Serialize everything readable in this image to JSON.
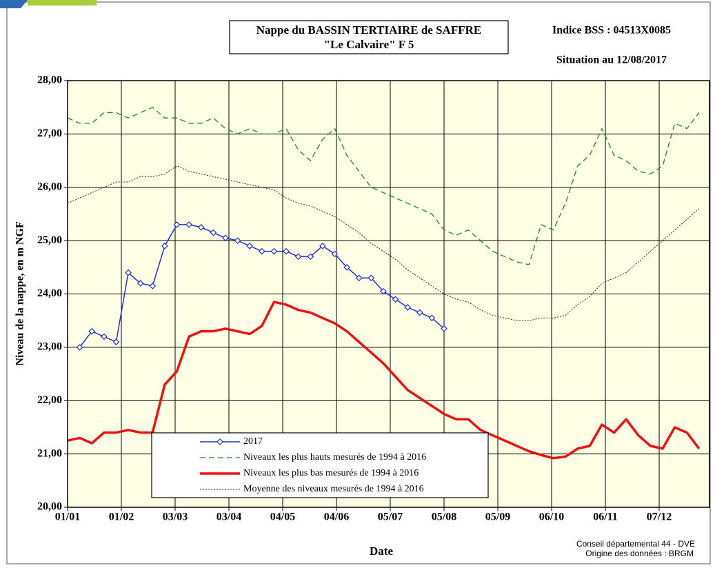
{
  "chart_data": {
    "type": "line",
    "title": "Nappe du BASSIN TERTIAIRE de SAFFRE",
    "subtitle": "\"Le Calvaire\" F 5",
    "annotations": [
      "Indice BSS : 04513X0085",
      "Situation au 12/08/2017"
    ],
    "footer": [
      "Conseil départemental 44 - DVE",
      "Origine des données : BRGM"
    ],
    "xlabel": "Date",
    "ylabel": "Niveau de la nappe, en m NGF",
    "xlim": [
      0,
      370
    ],
    "ylim": [
      20,
      28
    ],
    "xticks": [
      {
        "value": 0,
        "label": "01/01"
      },
      {
        "value": 31,
        "label": "01/02"
      },
      {
        "value": 62,
        "label": "03/03"
      },
      {
        "value": 93,
        "label": "03/04"
      },
      {
        "value": 124,
        "label": "04/05"
      },
      {
        "value": 155,
        "label": "04/06"
      },
      {
        "value": 186,
        "label": "05/07"
      },
      {
        "value": 217,
        "label": "05/08"
      },
      {
        "value": 248,
        "label": "05/09"
      },
      {
        "value": 279,
        "label": "06/10"
      },
      {
        "value": 310,
        "label": "06/11"
      },
      {
        "value": 341,
        "label": "07/12"
      }
    ],
    "yticks": [
      {
        "value": 20,
        "label": "20,00"
      },
      {
        "value": 21,
        "label": "21,00"
      },
      {
        "value": 22,
        "label": "22,00"
      },
      {
        "value": 23,
        "label": "23,00"
      },
      {
        "value": 24,
        "label": "24,00"
      },
      {
        "value": 25,
        "label": "25,00"
      },
      {
        "value": 26,
        "label": "26,00"
      },
      {
        "value": 27,
        "label": "27,00"
      },
      {
        "value": 28,
        "label": "28,00"
      }
    ],
    "grid": true,
    "legend_position": "lower-left",
    "x": [
      0,
      7,
      14,
      21,
      28,
      35,
      42,
      49,
      56,
      63,
      70,
      77,
      84,
      91,
      98,
      105,
      112,
      119,
      126,
      133,
      140,
      147,
      154,
      161,
      168,
      175,
      182,
      189,
      196,
      203,
      210,
      217,
      224,
      231,
      238,
      245,
      252,
      259,
      266,
      273,
      280,
      287,
      294,
      301,
      308,
      315,
      322,
      329,
      336,
      343,
      350,
      357,
      364
    ],
    "series": [
      {
        "name": "2017",
        "color": "#1f2fd0",
        "line_style": "solid",
        "marker": "diamond",
        "values": [
          null,
          23.0,
          23.3,
          23.2,
          23.1,
          24.4,
          24.2,
          24.15,
          24.9,
          25.3,
          25.3,
          25.25,
          25.15,
          25.05,
          25.0,
          24.9,
          24.8,
          24.8,
          24.8,
          24.7,
          24.7,
          24.9,
          24.75,
          24.5,
          24.3,
          24.3,
          24.05,
          23.9,
          23.75,
          23.65,
          23.55,
          23.35,
          null,
          null,
          null,
          null,
          null,
          null,
          null,
          null,
          null,
          null,
          null,
          null,
          null,
          null,
          null,
          null,
          null,
          null,
          null,
          null,
          null
        ]
      },
      {
        "name": "Niveaux les plus hauts mesurés de 1994 à 2016",
        "color": "#1a8a1a",
        "line_style": "dashed",
        "values": [
          27.3,
          27.2,
          27.2,
          27.4,
          27.4,
          27.3,
          27.4,
          27.5,
          27.3,
          27.3,
          27.2,
          27.2,
          27.3,
          27.1,
          27.0,
          27.1,
          27.0,
          27.0,
          27.1,
          26.7,
          26.5,
          26.9,
          27.1,
          26.6,
          26.3,
          26.0,
          25.9,
          25.8,
          25.7,
          25.6,
          25.5,
          25.2,
          25.1,
          25.2,
          25.0,
          24.8,
          24.7,
          24.6,
          24.55,
          25.3,
          25.2,
          25.7,
          26.4,
          26.6,
          27.1,
          26.6,
          26.5,
          26.3,
          26.25,
          26.4,
          27.2,
          27.1,
          27.4
        ]
      },
      {
        "name": "Niveaux les plus bas mesurés de 1994 à 2016",
        "color": "#ee1111",
        "line_style": "thick",
        "values": [
          21.25,
          21.3,
          21.2,
          21.4,
          21.4,
          21.45,
          21.4,
          21.4,
          22.3,
          22.55,
          23.2,
          23.3,
          23.3,
          23.35,
          23.3,
          23.25,
          23.4,
          23.85,
          23.8,
          23.7,
          23.65,
          23.55,
          23.45,
          23.3,
          23.1,
          22.9,
          22.7,
          22.45,
          22.2,
          22.05,
          21.9,
          21.75,
          21.65,
          21.65,
          21.45,
          21.35,
          21.25,
          21.15,
          21.05,
          20.98,
          20.92,
          20.95,
          21.1,
          21.15,
          21.55,
          21.4,
          21.65,
          21.35,
          21.15,
          21.1,
          21.5,
          21.4,
          21.1
        ]
      },
      {
        "name": "Moyenne des niveaux mesurés de 1994 à 2016",
        "color": "#222222",
        "line_style": "dotted",
        "values": [
          25.7,
          25.8,
          25.9,
          26.0,
          26.1,
          26.1,
          26.2,
          26.2,
          26.25,
          26.4,
          26.3,
          26.25,
          26.2,
          26.15,
          26.1,
          26.05,
          26.0,
          25.95,
          25.8,
          25.7,
          25.65,
          25.55,
          25.45,
          25.3,
          25.15,
          24.95,
          24.8,
          24.65,
          24.45,
          24.3,
          24.15,
          24.0,
          23.9,
          23.85,
          23.7,
          23.6,
          23.55,
          23.5,
          23.5,
          23.55,
          23.55,
          23.6,
          23.8,
          23.95,
          24.2,
          24.3,
          24.4,
          24.6,
          24.8,
          25.0,
          25.2,
          25.4,
          25.6
        ]
      }
    ]
  }
}
